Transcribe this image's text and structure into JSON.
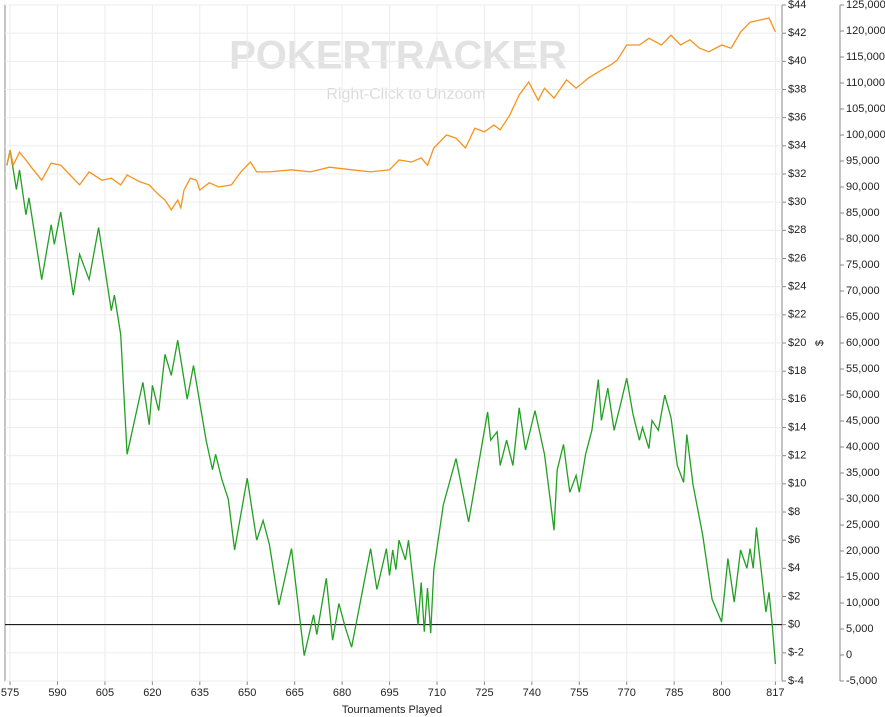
{
  "chart_data": {
    "type": "line",
    "annotations": [
      "POKERTRACKER",
      "Right-Click to Unzoom"
    ],
    "xlabel": "Tournaments Played",
    "ylabel": "$",
    "xlim": [
      573.4,
      819.1
    ],
    "xticks": [
      575,
      590,
      605,
      620,
      635,
      650,
      665,
      680,
      695,
      710,
      725,
      740,
      755,
      770,
      785,
      800,
      817
    ],
    "ylim": [
      -4,
      44
    ],
    "yticks": [
      {
        "value": -4,
        "label": "$-4"
      },
      {
        "value": -2,
        "label": "$-2"
      },
      {
        "value": 0,
        "label": "$0"
      },
      {
        "value": 2,
        "label": "$2"
      },
      {
        "value": 4,
        "label": "$4"
      },
      {
        "value": 6,
        "label": "$6"
      },
      {
        "value": 8,
        "label": "$8"
      },
      {
        "value": 10,
        "label": "$10"
      },
      {
        "value": 12,
        "label": "$12"
      },
      {
        "value": 14,
        "label": "$14"
      },
      {
        "value": 16,
        "label": "$16"
      },
      {
        "value": 18,
        "label": "$18"
      },
      {
        "value": 20,
        "label": "$20"
      },
      {
        "value": 22,
        "label": "$22"
      },
      {
        "value": 24,
        "label": "$24"
      },
      {
        "value": 26,
        "label": "$26"
      },
      {
        "value": 28,
        "label": "$28"
      },
      {
        "value": 30,
        "label": "$30"
      },
      {
        "value": 32,
        "label": "$32"
      },
      {
        "value": 34,
        "label": "$34"
      },
      {
        "value": 36,
        "label": "$36"
      },
      {
        "value": 38,
        "label": "$38"
      },
      {
        "value": 40,
        "label": "$40"
      },
      {
        "value": 42,
        "label": "$42"
      },
      {
        "value": 44,
        "label": "$44"
      }
    ],
    "y2lim": [
      -5000,
      125000
    ],
    "y2ticks": [
      {
        "value": -5000,
        "label": "-5,000"
      },
      0,
      {
        "value": 5000,
        "label": "5,000"
      },
      {
        "value": 10000,
        "label": "10,000"
      },
      {
        "value": 15000,
        "label": "15,000"
      },
      {
        "value": 20000,
        "label": "20,000"
      },
      {
        "value": 25000,
        "label": "25,000"
      },
      {
        "value": 30000,
        "label": "30,000"
      },
      {
        "value": 35000,
        "label": "35,000"
      },
      {
        "value": 40000,
        "label": "40,000"
      },
      {
        "value": 45000,
        "label": "45,000"
      },
      {
        "value": 50000,
        "label": "50,000"
      },
      {
        "value": 55000,
        "label": "55,000"
      },
      {
        "value": 60000,
        "label": "60,000"
      },
      {
        "value": 65000,
        "label": "65,000"
      },
      {
        "value": 70000,
        "label": "70,000"
      },
      {
        "value": 75000,
        "label": "75,000"
      },
      {
        "value": 80000,
        "label": "80,000"
      },
      {
        "value": 85000,
        "label": "85,000"
      },
      {
        "value": 90000,
        "label": "90,000"
      },
      {
        "value": 95000,
        "label": "95,000"
      },
      {
        "value": 100000,
        "label": "100,000"
      },
      {
        "value": 105000,
        "label": "105,000"
      },
      {
        "value": 110000,
        "label": "110,000"
      },
      {
        "value": 115000,
        "label": "115,000"
      },
      {
        "value": 120000,
        "label": "120,000"
      },
      {
        "value": 125000,
        "label": "125,000"
      }
    ],
    "grid": true,
    "series": [
      {
        "color": "#22a022",
        "x": [
          574,
          575,
          577,
          578,
          580,
          581,
          585,
          588,
          589,
          591,
          595,
          597,
          600,
          603,
          607,
          608,
          610,
          612,
          617,
          619,
          620,
          622,
          624,
          626,
          628,
          631,
          633,
          637,
          639,
          640,
          642,
          644,
          646,
          650,
          653,
          655,
          657,
          660,
          664,
          668,
          671,
          672,
          675,
          677,
          679,
          681,
          683,
          689,
          691,
          694,
          695,
          696,
          697,
          698,
          700,
          701,
          704,
          705,
          706,
          707,
          708,
          709,
          712,
          716,
          720,
          726,
          727,
          729,
          730,
          732,
          734,
          736,
          738,
          741,
          744,
          747,
          748,
          750,
          752,
          754,
          755,
          757,
          759,
          761,
          762,
          764,
          766,
          768,
          770,
          772,
          774,
          775,
          777,
          778,
          780,
          782,
          784,
          786,
          788,
          789,
          791,
          794,
          797,
          800,
          802,
          804,
          806,
          808,
          809,
          810,
          811,
          814,
          815,
          816,
          817
        ],
        "values": [
          32.6,
          33.7,
          30.9,
          32.3,
          29.1,
          30.3,
          24.5,
          28.4,
          27.0,
          29.3,
          23.4,
          26.3,
          24.5,
          28.2,
          22.3,
          23.4,
          20.6,
          12.1,
          17.2,
          14.2,
          17.0,
          15.2,
          19.2,
          17.7,
          20.2,
          16.0,
          18.4,
          13.1,
          11.0,
          12.1,
          10.3,
          8.9,
          5.3,
          10.4,
          6.0,
          7.4,
          5.7,
          1.4,
          5.4,
          -2.2,
          0.7,
          -0.7,
          3.3,
          -1.1,
          1.5,
          -0.2,
          -1.6,
          5.4,
          2.5,
          5.4,
          3.5,
          5.3,
          3.9,
          6.0,
          4.6,
          6.0,
          0.0,
          3.0,
          -0.5,
          2.6,
          -0.6,
          3.9,
          8.5,
          11.8,
          7.3,
          15.1,
          13.1,
          13.7,
          11.3,
          13.1,
          11.3,
          15.4,
          12.4,
          15.2,
          12.1,
          6.7,
          11.0,
          12.8,
          9.4,
          10.6,
          9.4,
          12.1,
          13.8,
          17.4,
          14.5,
          16.8,
          13.8,
          15.6,
          17.5,
          14.9,
          13.1,
          14.0,
          12.5,
          14.5,
          13.8,
          16.3,
          14.7,
          11.3,
          10.1,
          13.5,
          9.9,
          6.4,
          1.8,
          0.2,
          4.7,
          1.6,
          5.3,
          4.0,
          5.4,
          4.0,
          6.9,
          0.9,
          2.3,
          0.0,
          -2.8
        ]
      },
      {
        "color": "#f7931e",
        "axis": "y2",
        "x": [
          574,
          575,
          576,
          578,
          580,
          582,
          585,
          588,
          591,
          594,
          597,
          600,
          604,
          607,
          610,
          612,
          616,
          619,
          622,
          624,
          626,
          628,
          629,
          630,
          632,
          634,
          635,
          638,
          641,
          645,
          648,
          651,
          653,
          657,
          664,
          670,
          676,
          683,
          689,
          695,
          698,
          702,
          705,
          707,
          709,
          713,
          716,
          719,
          722,
          725,
          728,
          730,
          733,
          736,
          739,
          742,
          744,
          747,
          751,
          754,
          758,
          762,
          765,
          767,
          770,
          774,
          777,
          781,
          784,
          787,
          790,
          793,
          796,
          800,
          803,
          806,
          809,
          812,
          815,
          816,
          817
        ],
        "values": [
          94200,
          97100,
          94200,
          96700,
          95200,
          93600,
          91300,
          94600,
          94200,
          92300,
          90400,
          92900,
          91300,
          91700,
          90400,
          92300,
          91000,
          90400,
          88500,
          87500,
          85600,
          87500,
          86000,
          89400,
          91700,
          91300,
          89400,
          90800,
          90000,
          90400,
          92900,
          94800,
          92900,
          92900,
          93300,
          92900,
          93800,
          93300,
          92900,
          93300,
          95200,
          94800,
          95600,
          94200,
          97500,
          100000,
          99400,
          97500,
          101300,
          100600,
          101900,
          101000,
          103800,
          107700,
          110200,
          106700,
          109000,
          107100,
          110600,
          109000,
          111000,
          112500,
          113500,
          114400,
          117300,
          117300,
          118600,
          117300,
          119200,
          117300,
          118300,
          116700,
          116000,
          117300,
          116700,
          119800,
          121700,
          122100,
          122500,
          121200,
          119800
        ]
      }
    ]
  }
}
